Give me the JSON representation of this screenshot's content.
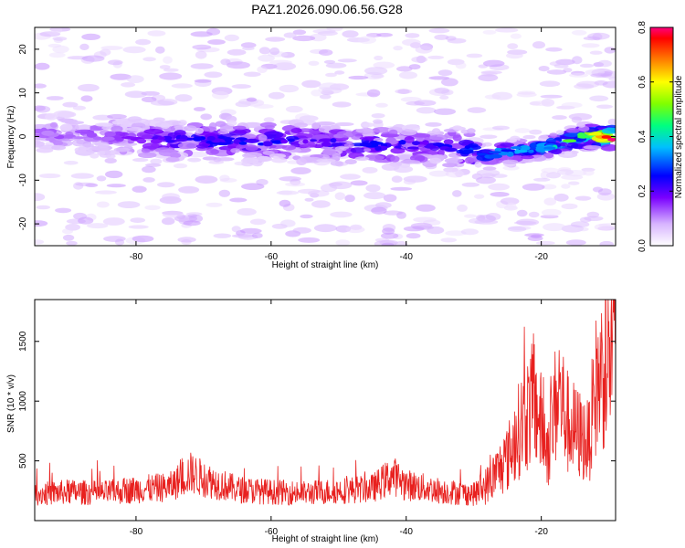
{
  "page": {
    "title": "PAZ1.2026.090.06.56.G28"
  },
  "chart_data": [
    {
      "type": "heatmap",
      "title": "PAZ1.2026.090.06.56.G28",
      "xlabel": "Height of straight line (km)",
      "ylabel": "Frequency (Hz)",
      "xlim": [
        -95,
        -9
      ],
      "ylim": [
        -25,
        25
      ],
      "x_ticks": [
        -80,
        -60,
        -40,
        -20
      ],
      "y_ticks": [
        20,
        10,
        0,
        -10,
        -20
      ],
      "colorbar": {
        "label": "Normalized spectral amplitude",
        "range": [
          0,
          0.8
        ],
        "ticks": [
          0.0,
          0.2,
          0.4,
          0.6,
          0.8
        ],
        "tick_labels": [
          "0.0",
          "0.2",
          "0.4",
          "0.6",
          "0.8"
        ]
      },
      "ridge": {
        "x": [
          -95,
          -85,
          -75,
          -65,
          -55,
          -45,
          -35,
          -28,
          -22,
          -18,
          -14,
          -10
        ],
        "freq_hz": [
          1,
          0,
          -1,
          -1,
          -1,
          -2,
          -2,
          -4,
          -3,
          -2,
          0,
          0
        ],
        "amplitude": [
          0.12,
          0.14,
          0.22,
          0.25,
          0.22,
          0.24,
          0.22,
          0.3,
          0.35,
          0.38,
          0.55,
          0.8
        ]
      }
    },
    {
      "type": "line",
      "xlabel": "Height of straight line (km)",
      "ylabel": "SNR (10 * v/v)",
      "xlim": [
        -95,
        -9
      ],
      "ylim": [
        0,
        1850
      ],
      "x_ticks": [
        -80,
        -60,
        -40,
        -20
      ],
      "y_ticks": [
        500,
        1000,
        1500
      ],
      "series": [
        {
          "name": "SNR",
          "color": "#e8201e",
          "x": [
            -95,
            -90,
            -85,
            -80,
            -75,
            -72,
            -70,
            -65,
            -60,
            -55,
            -50,
            -45,
            -42,
            -40,
            -35,
            -30,
            -28,
            -25,
            -23,
            -21,
            -19,
            -17.5,
            -16,
            -14,
            -13,
            -12,
            -11,
            -10,
            -9
          ],
          "y": [
            220,
            240,
            230,
            260,
            280,
            400,
            350,
            260,
            240,
            230,
            250,
            270,
            380,
            300,
            250,
            220,
            300,
            520,
            800,
            1000,
            600,
            1100,
            800,
            700,
            650,
            1100,
            1250,
            1350,
            1500
          ]
        }
      ]
    }
  ]
}
